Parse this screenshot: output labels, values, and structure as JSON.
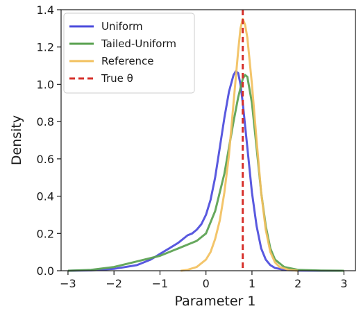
{
  "chart_data": {
    "type": "line",
    "title": "",
    "xlabel": "Parameter 1",
    "ylabel": "Density",
    "xlim": [
      -3.15,
      3.25
    ],
    "ylim": [
      0,
      1.4
    ],
    "xticks": [
      -3,
      -2,
      -1,
      0,
      1,
      2,
      3
    ],
    "yticks": [
      0.0,
      0.2,
      0.4,
      0.6,
      0.8,
      1.0,
      1.2,
      1.4
    ],
    "xtick_labels": [
      "−3",
      "−2",
      "−1",
      "0",
      "1",
      "2",
      "3"
    ],
    "ytick_labels": [
      "0.0",
      "0.2",
      "0.4",
      "0.6",
      "0.8",
      "1.0",
      "1.2",
      "1.4"
    ],
    "grid": false,
    "legend_position": "top-left",
    "series": [
      {
        "name": "Uniform",
        "color": "#4b4bdc",
        "x": [
          -3.0,
          -2.5,
          -2.0,
          -1.5,
          -1.2,
          -1.0,
          -0.8,
          -0.6,
          -0.5,
          -0.4,
          -0.3,
          -0.2,
          -0.1,
          0.0,
          0.1,
          0.2,
          0.3,
          0.4,
          0.5,
          0.6,
          0.65,
          0.7,
          0.75,
          0.8,
          0.9,
          1.0,
          1.1,
          1.2,
          1.3,
          1.4,
          1.5,
          1.7,
          2.0,
          2.5,
          2.95
        ],
        "y": [
          0.0,
          0.002,
          0.01,
          0.03,
          0.06,
          0.09,
          0.12,
          0.15,
          0.17,
          0.19,
          0.2,
          0.22,
          0.25,
          0.3,
          0.38,
          0.5,
          0.66,
          0.82,
          0.96,
          1.05,
          1.07,
          1.06,
          1.0,
          0.9,
          0.66,
          0.42,
          0.24,
          0.12,
          0.06,
          0.03,
          0.015,
          0.005,
          0.001,
          0.0,
          0.0
        ]
      },
      {
        "name": "Tailed-Uniform",
        "color": "#59a14f",
        "x": [
          -3.0,
          -2.5,
          -2.0,
          -1.5,
          -1.0,
          -0.8,
          -0.6,
          -0.4,
          -0.2,
          0.0,
          0.2,
          0.4,
          0.5,
          0.6,
          0.7,
          0.8,
          0.85,
          0.9,
          1.0,
          1.1,
          1.2,
          1.3,
          1.4,
          1.5,
          1.7,
          2.0,
          2.5,
          3.0
        ],
        "y": [
          0.0,
          0.005,
          0.02,
          0.05,
          0.08,
          0.1,
          0.12,
          0.14,
          0.16,
          0.2,
          0.32,
          0.52,
          0.66,
          0.8,
          0.93,
          1.03,
          1.05,
          1.04,
          0.9,
          0.66,
          0.42,
          0.24,
          0.12,
          0.06,
          0.02,
          0.005,
          0.001,
          0.0
        ]
      },
      {
        "name": "Reference",
        "color": "#f2c05e",
        "x": [
          -0.55,
          -0.4,
          -0.2,
          0.0,
          0.1,
          0.2,
          0.3,
          0.4,
          0.5,
          0.6,
          0.7,
          0.75,
          0.8,
          0.85,
          0.9,
          1.0,
          1.1,
          1.2,
          1.3,
          1.4,
          1.5,
          1.6,
          1.8,
          2.0
        ],
        "y": [
          0.0,
          0.005,
          0.02,
          0.06,
          0.1,
          0.17,
          0.27,
          0.42,
          0.62,
          0.9,
          1.18,
          1.3,
          1.35,
          1.32,
          1.25,
          1.0,
          0.7,
          0.42,
          0.22,
          0.1,
          0.045,
          0.02,
          0.005,
          0.0
        ]
      }
    ],
    "reference_line": {
      "name": "True θ",
      "x": 0.8,
      "color": "#d6302b",
      "style": "dashed"
    }
  }
}
